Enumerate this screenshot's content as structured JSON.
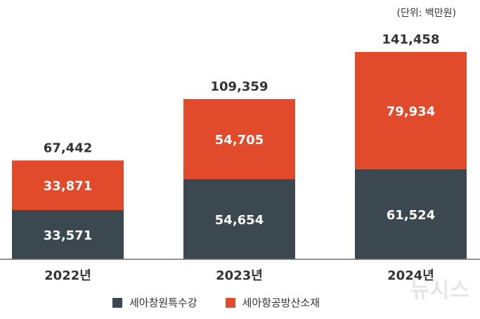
{
  "unit_label": "(단위: 백만원)",
  "watermark": "뉴시스",
  "colors": {
    "series_bottom": "#3b4850",
    "series_top": "#e14b2b",
    "axis": "#6f6f6f"
  },
  "chart_data": {
    "type": "bar",
    "stacked": true,
    "categories": [
      "2022년",
      "2023년",
      "2024년"
    ],
    "series": [
      {
        "name": "세아창원특수강",
        "values": [
          33571,
          54654,
          61524
        ]
      },
      {
        "name": "세아항공방산소재",
        "values": [
          33871,
          54705,
          79934
        ]
      }
    ],
    "totals": [
      "67,442",
      "109,359",
      "141,458"
    ],
    "value_labels": [
      [
        "33,571",
        "54,654",
        "61,524"
      ],
      [
        "33,871",
        "54,705",
        "79,934"
      ]
    ],
    "ylim": [
      0,
      141458
    ],
    "grid": false,
    "legend": "bottom"
  }
}
